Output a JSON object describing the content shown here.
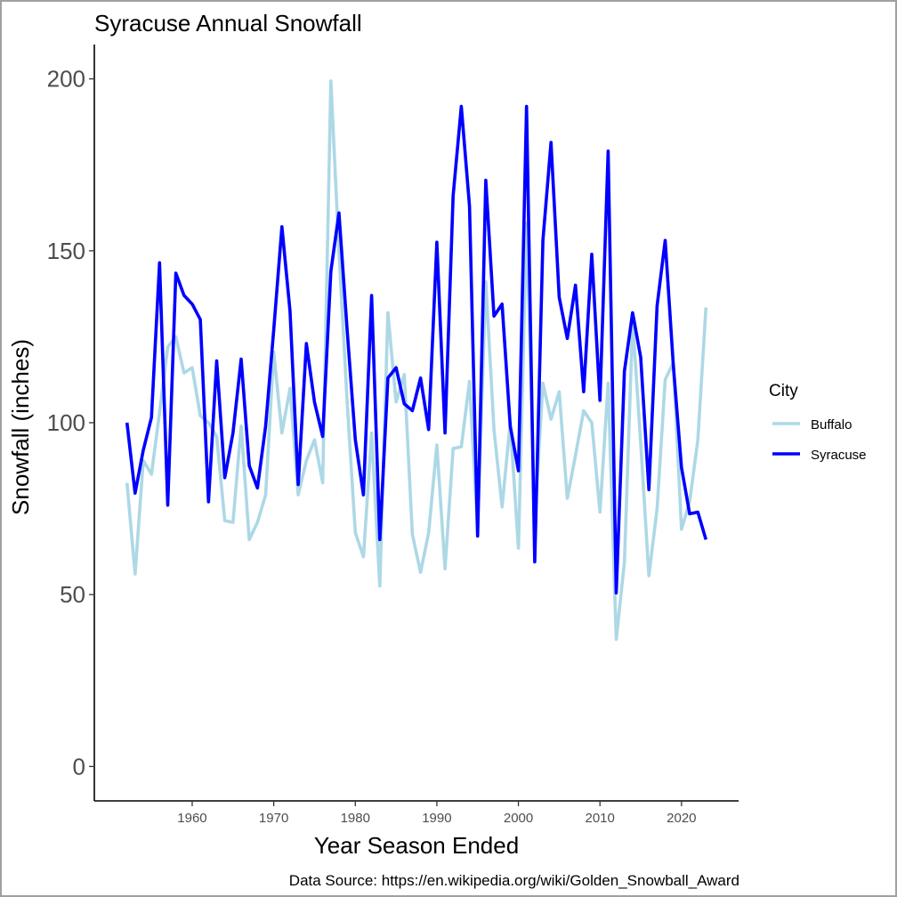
{
  "chart_data": {
    "type": "line",
    "title": "Syracuse Annual Snowfall",
    "xlabel": "Year Season Ended",
    "ylabel": "Snowfall (inches)",
    "caption": "Data Source: https://en.wikipedia.org/wiki/Golden_Snowball_Award",
    "xlim": [
      1948,
      2027
    ],
    "ylim": [
      -10,
      210
    ],
    "x_ticks": [
      1960,
      1970,
      1980,
      1990,
      2000,
      2010,
      2020
    ],
    "x_tick_labels": [
      "1960",
      "1970",
      "1980",
      "1990",
      "2000",
      "2010",
      "2020"
    ],
    "y_ticks": [
      0,
      50,
      100,
      150,
      200
    ],
    "y_tick_labels": [
      "0",
      "50",
      "100",
      "150",
      "200"
    ],
    "grid": false,
    "legend": {
      "title": "City",
      "placement": "right"
    },
    "x": [
      1952,
      1953,
      1954,
      1955,
      1956,
      1957,
      1958,
      1959,
      1960,
      1961,
      1962,
      1963,
      1964,
      1965,
      1966,
      1967,
      1968,
      1969,
      1970,
      1971,
      1972,
      1973,
      1974,
      1975,
      1976,
      1977,
      1978,
      1979,
      1980,
      1981,
      1982,
      1983,
      1984,
      1985,
      1986,
      1987,
      1988,
      1989,
      1990,
      1991,
      1992,
      1993,
      1994,
      1995,
      1996,
      1997,
      1998,
      1999,
      2000,
      2001,
      2002,
      2003,
      2004,
      2005,
      2006,
      2007,
      2008,
      2009,
      2010,
      2011,
      2012,
      2013,
      2014,
      2015,
      2016,
      2017,
      2018,
      2019,
      2020,
      2021,
      2022,
      2023
    ],
    "series": [
      {
        "name": "Buffalo",
        "color": "#add8e6",
        "values": [
          82.5,
          56.0,
          89.0,
          85.0,
          103.0,
          122.0,
          125.0,
          114.5,
          116.0,
          102.0,
          100.0,
          96.0,
          71.5,
          71.0,
          99.0,
          66.0,
          71.0,
          79.0,
          120.5,
          97.0,
          110.0,
          79.0,
          89.0,
          95.0,
          82.5,
          199.4,
          150.0,
          106.0,
          68.0,
          61.0,
          97.0,
          52.5,
          132.0,
          106.0,
          114.0,
          67.5,
          56.5,
          68.0,
          93.5,
          57.5,
          92.5,
          93.0,
          112.0,
          68.5,
          141.0,
          98.0,
          75.5,
          100.0,
          63.5,
          158.0,
          71.5,
          111.5,
          101.0,
          109.0,
          78.0,
          90.5,
          103.5,
          100.0,
          74.0,
          111.5,
          37.0,
          59.5,
          129.5,
          94.0,
          55.5,
          75.0,
          112.5,
          117.5,
          69.0,
          77.0,
          95.0,
          133.5
        ]
      },
      {
        "name": "Syracuse",
        "color": "#0000ff",
        "values": [
          100.0,
          79.5,
          92.0,
          101.5,
          146.5,
          76.0,
          143.5,
          137.0,
          134.5,
          130.0,
          77.0,
          118.0,
          84.0,
          97.0,
          118.5,
          87.5,
          81.0,
          99.0,
          127.0,
          157.0,
          132.5,
          82.0,
          123.0,
          106.0,
          96.0,
          144.0,
          161.0,
          127.0,
          95.0,
          79.0,
          137.0,
          66.0,
          113.0,
          116.0,
          105.5,
          103.5,
          113.0,
          98.0,
          152.5,
          97.0,
          166.0,
          192.0,
          163.0,
          67.0,
          170.5,
          131.0,
          134.5,
          99.0,
          86.0,
          192.0,
          59.5,
          153.0,
          181.5,
          136.5,
          124.5,
          140.0,
          109.0,
          149.0,
          106.5,
          179.0,
          50.5,
          115.0,
          132.0,
          119.0,
          80.5,
          134.0,
          153.0,
          116.5,
          87.0,
          73.5,
          74.0,
          66.0
        ]
      }
    ]
  }
}
